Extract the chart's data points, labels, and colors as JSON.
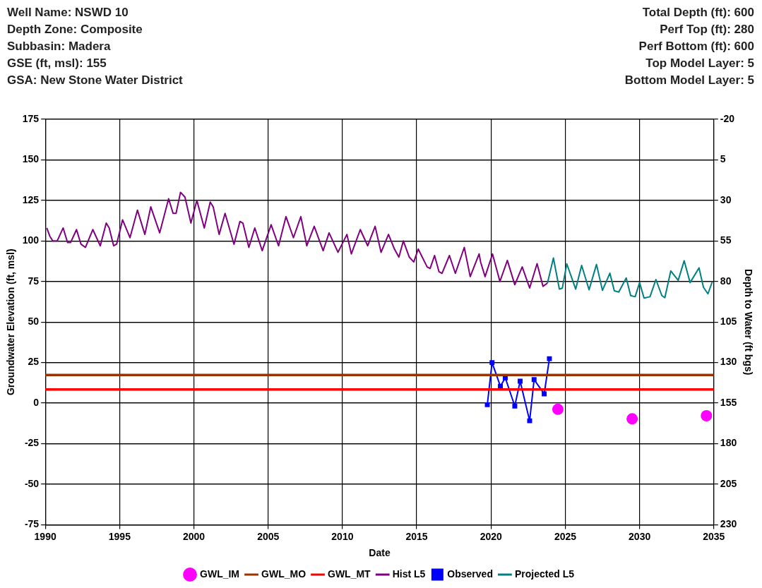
{
  "chart_data": {
    "type": "line",
    "annotations": [
      "Well Name: NSWD 10",
      "Total Depth (ft): 600",
      "Depth Zone: Composite",
      "Perf Top (ft): 280",
      "Subbasin: Madera",
      "Perf Bottom (ft): 600",
      "GSE (ft, msl): 155",
      "Top Model Layer: 5",
      "GSA: New Stone Water District",
      "Bottom Model Layer: 5"
    ],
    "xlabel": "Date",
    "ylabel": "Groundwater Elevation (ft, msl)",
    "y2label": "Depth to Water (ft bgs)",
    "xlim": [
      1990,
      2035
    ],
    "xticks": [
      1990,
      1995,
      2000,
      2005,
      2010,
      2015,
      2020,
      2025,
      2030,
      2035
    ],
    "ylim": [
      -75,
      175
    ],
    "yticks": [
      -75,
      -50,
      -25,
      0,
      25,
      50,
      75,
      100,
      125,
      150,
      175
    ],
    "y2lim": [
      230,
      -20
    ],
    "y2ticks": [
      230,
      205,
      180,
      155,
      130,
      105,
      80,
      55,
      30,
      5,
      -20
    ],
    "grid": true,
    "legend": "bottom",
    "line_style": "solid",
    "ref_lines": [
      {
        "axis": "y",
        "value": 17.3,
        "label": "GWL_MO",
        "color": "#993300"
      },
      {
        "axis": "y",
        "value": 8.4,
        "label": "GWL_MT",
        "color": "#ff0000"
      }
    ],
    "series": [
      {
        "name": "GWL_IM",
        "type": "scatter",
        "color": "#ff00ff",
        "marker": "circle",
        "x": [
          2024.5,
          2029.5,
          2034.5
        ],
        "values": [
          -3.8,
          -9.7,
          -7.8
        ]
      },
      {
        "name": "Hist L5",
        "color": "#800080",
        "marker": "none",
        "x": [
          1990.1,
          1990.3,
          1990.5,
          1990.8,
          1991.2,
          1991.5,
          1991.7,
          1992.1,
          1992.4,
          1992.7,
          1993.2,
          1993.7,
          1994.1,
          1994.3,
          1994.6,
          1994.8,
          1995.2,
          1995.7,
          1996.2,
          1996.7,
          1997.1,
          1997.7,
          1998.3,
          1998.6,
          1998.8,
          1999.1,
          1999.4,
          1999.8,
          2000.2,
          2000.7,
          2001.1,
          2001.3,
          2001.7,
          2002.1,
          2002.7,
          2003.1,
          2003.3,
          2003.7,
          2004.1,
          2004.6,
          2005.2,
          2005.7,
          2006.2,
          2006.7,
          2007.2,
          2007.6,
          2008.1,
          2008.7,
          2009.1,
          2009.7,
          2010.3,
          2010.6,
          2011.2,
          2011.7,
          2012.2,
          2012.6,
          2013.1,
          2013.5,
          2013.8,
          2014.1,
          2014.5,
          2014.8,
          2015.1,
          2015.7,
          2015.9,
          2016.2,
          2016.5,
          2016.7,
          2017.2,
          2017.6,
          2018.2,
          2018.6,
          2019.2,
          2019.3,
          2019.6,
          2020.1,
          2020.6,
          2021.1,
          2021.6,
          2022.1,
          2022.6,
          2023.1,
          2023.5,
          2023.8
        ],
        "values": [
          108,
          103,
          100,
          100,
          108,
          99,
          99,
          107,
          98,
          96,
          107,
          97,
          111,
          108,
          97,
          98,
          113,
          102,
          119,
          104,
          121,
          105,
          126,
          117,
          117,
          130,
          127,
          111,
          125,
          108,
          124,
          121,
          104,
          117,
          98,
          112,
          111,
          96,
          108,
          94,
          110,
          97,
          115,
          102,
          115,
          97,
          109,
          94,
          105,
          93,
          104,
          92,
          107,
          97,
          109,
          93,
          104,
          95,
          90,
          100,
          90,
          87,
          95,
          84,
          83,
          91,
          81,
          80,
          91,
          80,
          96,
          78,
          92,
          87,
          78,
          92,
          75,
          88,
          73,
          84,
          71,
          86,
          72,
          74
        ]
      },
      {
        "name": "Observed",
        "color": "#0000ff",
        "marker": "square",
        "x": [
          2019.75,
          2020.07,
          2020.63,
          2020.96,
          2021.6,
          2021.96,
          2022.6,
          2022.9,
          2023.58,
          2023.93
        ],
        "values": [
          -1,
          25,
          10.4,
          15.6,
          -1.8,
          13.5,
          -10.9,
          14.5,
          5.7,
          27.4
        ]
      },
      {
        "name": "Projected L5",
        "color": "#008080",
        "marker": "none",
        "x": [
          2023.8,
          2024.2,
          2024.6,
          2024.8,
          2025.1,
          2025.7,
          2026.1,
          2026.6,
          2027.1,
          2027.5,
          2028,
          2028.3,
          2028.6,
          2029.1,
          2029.4,
          2029.7,
          2030,
          2030.3,
          2030.7,
          2031.1,
          2031.5,
          2031.7,
          2032.1,
          2032.6,
          2033,
          2033.4,
          2034,
          2034.3,
          2034.6,
          2034.9
        ],
        "values": [
          74,
          89.5,
          70.3,
          70.9,
          85.9,
          70.3,
          84.9,
          69.9,
          85.5,
          69.5,
          80.1,
          69.2,
          68.5,
          77.2,
          66.3,
          65.6,
          74.3,
          64.8,
          65.6,
          76.2,
          66.3,
          65,
          81.5,
          75.7,
          87.8,
          74.3,
          83.4,
          71.4,
          67.4,
          75
        ]
      }
    ]
  }
}
